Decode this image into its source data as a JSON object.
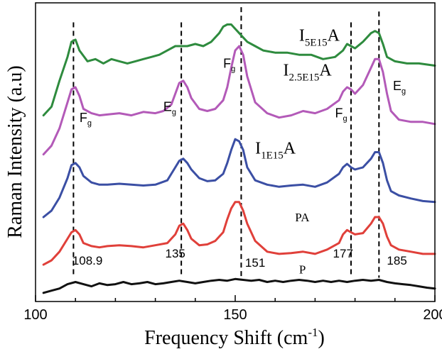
{
  "chart_data": {
    "type": "line",
    "xlabel": "Frequency Shift (cm",
    "xlabel_sup": "-1",
    "xlabel_end": ")",
    "ylabel": "Raman Intensity (a.u)",
    "xlim": [
      100,
      200
    ],
    "x_ticks": [
      "100",
      "150",
      "200"
    ],
    "y_ticks_labeled": false,
    "grid": false,
    "series": [
      {
        "name": "I5E15A",
        "color": "#2e8b3e",
        "x": [
          102,
          104,
          106,
          108,
          109,
          110,
          111,
          113,
          115,
          117,
          119,
          121,
          123,
          125,
          127,
          129,
          131,
          133,
          135,
          136,
          137,
          138,
          140,
          142,
          144,
          146,
          147,
          148,
          149,
          150,
          151,
          152,
          153,
          155,
          157,
          160,
          163,
          166,
          169,
          172,
          175,
          177,
          178,
          179,
          180,
          182,
          184,
          185,
          186,
          187,
          188,
          190,
          193,
          196,
          200
        ],
        "y": [
          3.7,
          3.9,
          4.5,
          5.05,
          5.4,
          5.45,
          5.2,
          4.95,
          5.0,
          4.9,
          5.0,
          4.95,
          4.9,
          4.95,
          5.0,
          5.05,
          5.1,
          5.2,
          5.3,
          5.3,
          5.3,
          5.3,
          5.35,
          5.3,
          5.4,
          5.6,
          5.75,
          5.8,
          5.8,
          5.7,
          5.6,
          5.5,
          5.4,
          5.3,
          5.2,
          5.15,
          5.15,
          5.1,
          5.1,
          5.0,
          5.05,
          5.2,
          5.35,
          5.3,
          5.25,
          5.4,
          5.6,
          5.65,
          5.6,
          5.35,
          5.05,
          4.95,
          4.9,
          4.9,
          4.85
        ]
      },
      {
        "name": "I2.5E15A",
        "color": "#b35ab8",
        "x": [
          102,
          104,
          106,
          108,
          109,
          110,
          111,
          112,
          114,
          116,
          118,
          121,
          124,
          127,
          130,
          132,
          134,
          135,
          136,
          137,
          138,
          139,
          141,
          143,
          145,
          147,
          148,
          149,
          150,
          151,
          152,
          153,
          155,
          158,
          161,
          164,
          167,
          170,
          173,
          176,
          177,
          178,
          179,
          180,
          182,
          184,
          185,
          186,
          187,
          188,
          189,
          191,
          194,
          197,
          200
        ],
        "y": [
          2.8,
          3.0,
          3.4,
          4.0,
          4.3,
          4.35,
          4.15,
          3.85,
          3.75,
          3.7,
          3.72,
          3.75,
          3.7,
          3.78,
          3.75,
          3.8,
          3.95,
          4.2,
          4.45,
          4.5,
          4.35,
          4.1,
          3.85,
          3.8,
          3.85,
          4.05,
          4.35,
          4.8,
          5.2,
          5.3,
          5.1,
          4.6,
          4.0,
          3.75,
          3.65,
          3.7,
          3.8,
          3.75,
          3.85,
          4.05,
          4.25,
          4.35,
          4.3,
          4.2,
          4.4,
          4.8,
          5.0,
          5.0,
          4.7,
          4.2,
          3.8,
          3.6,
          3.55,
          3.55,
          3.5
        ]
      },
      {
        "name": "I1E15A",
        "color": "#3b4fa4",
        "x": [
          102,
          104,
          106,
          108,
          109,
          110,
          111,
          112,
          114,
          116,
          118,
          121,
          124,
          127,
          130,
          133,
          134,
          135,
          136,
          137,
          138,
          139,
          141,
          143,
          145,
          147,
          148,
          149,
          150,
          151,
          152,
          153,
          155,
          158,
          161,
          164,
          167,
          170,
          173,
          176,
          177,
          178,
          179,
          180,
          182,
          184,
          185,
          186,
          187,
          188,
          189,
          191,
          194,
          197,
          200
        ],
        "y": [
          1.35,
          1.5,
          1.8,
          2.25,
          2.55,
          2.6,
          2.5,
          2.3,
          2.15,
          2.1,
          2.1,
          2.12,
          2.1,
          2.08,
          2.1,
          2.2,
          2.35,
          2.5,
          2.65,
          2.7,
          2.6,
          2.45,
          2.25,
          2.18,
          2.2,
          2.35,
          2.6,
          2.9,
          3.15,
          3.1,
          2.9,
          2.5,
          2.2,
          2.1,
          2.05,
          2.08,
          2.1,
          2.05,
          2.15,
          2.35,
          2.5,
          2.58,
          2.5,
          2.45,
          2.5,
          2.7,
          2.85,
          2.85,
          2.6,
          2.2,
          1.95,
          1.85,
          1.78,
          1.72,
          1.7
        ]
      },
      {
        "name": "PA",
        "color": "#e0403a",
        "x": [
          102,
          104,
          106,
          108,
          109,
          110,
          111,
          112,
          114,
          116,
          118,
          121,
          124,
          127,
          130,
          133,
          135,
          136,
          137,
          138,
          139,
          141,
          143,
          145,
          147,
          148,
          149,
          150,
          151,
          152,
          153,
          155,
          158,
          161,
          164,
          167,
          170,
          173,
          176,
          177,
          178,
          179,
          180,
          182,
          184,
          185,
          186,
          187,
          188,
          189,
          191,
          194,
          197,
          200
        ],
        "y": [
          0.25,
          0.35,
          0.55,
          0.85,
          1.0,
          1.05,
          0.95,
          0.75,
          0.68,
          0.65,
          0.68,
          0.7,
          0.68,
          0.65,
          0.7,
          0.75,
          0.95,
          1.15,
          1.2,
          1.05,
          0.85,
          0.7,
          0.72,
          0.8,
          1.0,
          1.3,
          1.55,
          1.7,
          1.7,
          1.5,
          1.2,
          0.8,
          0.55,
          0.5,
          0.52,
          0.55,
          0.5,
          0.6,
          0.75,
          0.95,
          1.05,
          1.0,
          0.95,
          0.98,
          1.2,
          1.35,
          1.35,
          1.2,
          0.9,
          0.7,
          0.6,
          0.55,
          0.5,
          0.5
        ]
      },
      {
        "name": "P",
        "color": "#111111",
        "x": [
          102,
          104,
          106,
          108,
          110,
          112,
          114,
          116,
          118,
          120,
          122,
          124,
          126,
          128,
          130,
          132,
          134,
          136,
          138,
          140,
          142,
          144,
          146,
          148,
          150,
          152,
          154,
          156,
          158,
          160,
          162,
          164,
          166,
          168,
          170,
          172,
          174,
          176,
          178,
          180,
          182,
          184,
          186,
          188,
          190,
          192,
          194,
          196,
          198,
          200
        ],
        "y": [
          -0.4,
          -0.35,
          -0.3,
          -0.2,
          -0.15,
          -0.2,
          -0.25,
          -0.18,
          -0.22,
          -0.2,
          -0.15,
          -0.2,
          -0.18,
          -0.15,
          -0.2,
          -0.18,
          -0.15,
          -0.12,
          -0.15,
          -0.18,
          -0.15,
          -0.12,
          -0.1,
          -0.12,
          -0.08,
          -0.1,
          -0.12,
          -0.1,
          -0.15,
          -0.12,
          -0.15,
          -0.12,
          -0.1,
          -0.12,
          -0.15,
          -0.12,
          -0.15,
          -0.12,
          -0.15,
          -0.12,
          -0.1,
          -0.12,
          -0.1,
          -0.15,
          -0.18,
          -0.2,
          -0.22,
          -0.25,
          -0.28,
          -0.3
        ]
      }
    ],
    "ylim": [
      -0.6,
      6.3
    ],
    "reference_lines": [
      {
        "x": 109.5,
        "y_top": 5.85
      },
      {
        "x": 136.5,
        "y_top": 5.85
      },
      {
        "x": 151.5,
        "y_top": 6.2
      },
      {
        "x": 179,
        "y_top": 5.85
      },
      {
        "x": 186,
        "y_top": 6.1
      }
    ],
    "series_labels": [
      {
        "key": "I5E15A",
        "base": "I",
        "sub": "5E15",
        "tail": "A",
        "x": 166,
        "y": 5.42
      },
      {
        "key": "I2.5E15A",
        "base": "I",
        "sub": "2.5E15",
        "tail": "A",
        "x": 162,
        "y": 4.62
      },
      {
        "key": "I1E15A",
        "base": "I",
        "sub": "1E15",
        "tail": "A",
        "x": 155,
        "y": 2.82
      },
      {
        "key": "PA",
        "base": "PA",
        "sub": "",
        "tail": "",
        "x": 165,
        "y": 1.25
      },
      {
        "key": "P",
        "base": "P",
        "sub": "",
        "tail": "",
        "x": 166,
        "y": 0.05
      }
    ],
    "mode_labels": [
      {
        "base": "F",
        "sub": "g",
        "x": 111,
        "y": 3.55
      },
      {
        "base": "E",
        "sub": "g",
        "x": 132,
        "y": 3.8
      },
      {
        "base": "F",
        "sub": "g",
        "x": 147,
        "y": 4.8
      },
      {
        "base": "F",
        "sub": "g",
        "x": 175,
        "y": 3.65
      },
      {
        "base": "E",
        "sub": "g",
        "x": 189.5,
        "y": 4.28
      }
    ],
    "peak_labels": [
      {
        "text": "108.9",
        "x": 113,
        "y": 0.25
      },
      {
        "text": "135",
        "x": 135,
        "y": 0.42
      },
      {
        "text": "151",
        "x": 155,
        "y": 0.2
      },
      {
        "text": "177",
        "x": 177,
        "y": 0.42
      },
      {
        "text": "185",
        "x": 190.5,
        "y": 0.25
      }
    ]
  }
}
